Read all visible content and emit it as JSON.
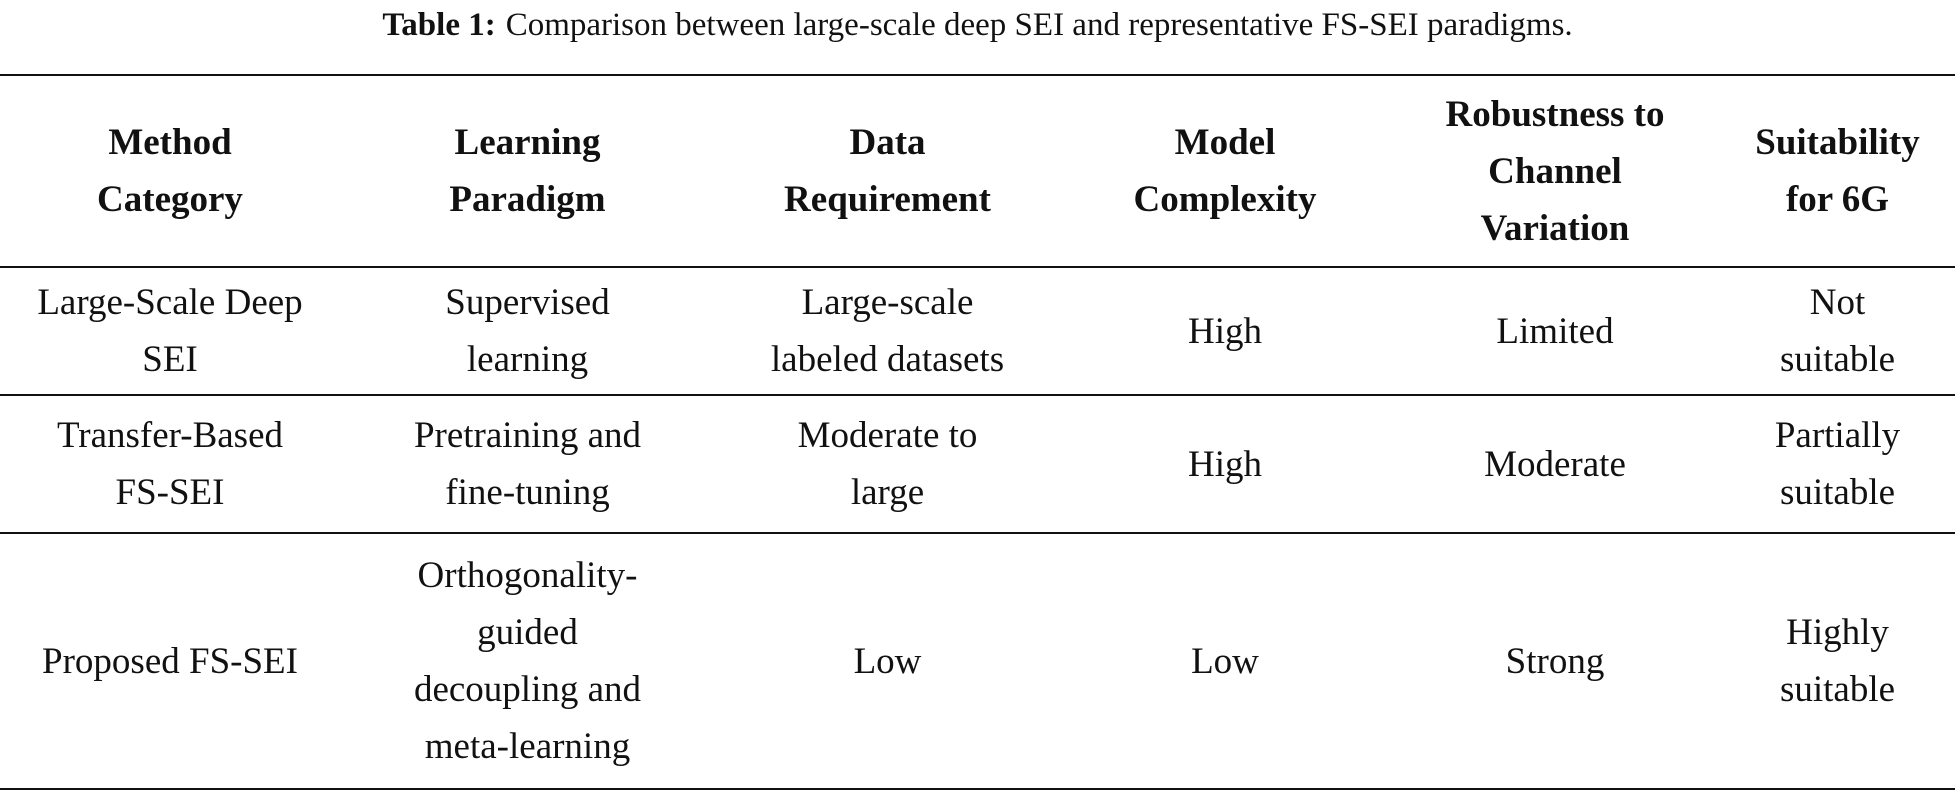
{
  "caption": {
    "label": "Table 1:",
    "text": "Comparison between large-scale deep SEI and representative FS-SEI paradigms."
  },
  "table": {
    "header": [
      [
        "Method",
        "Category"
      ],
      [
        "Learning",
        "Paradigm"
      ],
      [
        "Data",
        "Requirement"
      ],
      [
        "Model",
        "Complexity"
      ],
      [
        "Robustness to",
        "Channel",
        "Variation"
      ],
      [
        "Suitability",
        "for 6G"
      ]
    ],
    "rows": [
      [
        [
          "Large-Scale Deep",
          "SEI"
        ],
        [
          "Supervised",
          "learning"
        ],
        [
          "Large-scale",
          "labeled datasets"
        ],
        [
          "High"
        ],
        [
          "Limited"
        ],
        [
          "Not",
          "suitable"
        ]
      ],
      [
        [
          "Transfer-Based",
          "FS-SEI"
        ],
        [
          "Pretraining and",
          "fine-tuning"
        ],
        [
          "Moderate to",
          "large"
        ],
        [
          "High"
        ],
        [
          "Moderate"
        ],
        [
          "Partially",
          "suitable"
        ]
      ],
      [
        [
          "Proposed FS-SEI"
        ],
        [
          "Orthogonality-",
          "guided",
          "decoupling and",
          "meta-learning"
        ],
        [
          "Low"
        ],
        [
          "Low"
        ],
        [
          "Strong"
        ],
        [
          "Highly",
          "suitable"
        ]
      ]
    ]
  }
}
